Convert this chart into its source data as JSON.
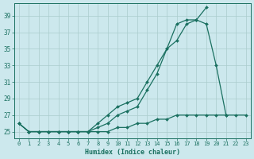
{
  "xlabel": "Humidex (Indice chaleur)",
  "x_values": [
    0,
    1,
    2,
    3,
    4,
    5,
    6,
    7,
    8,
    9,
    10,
    11,
    12,
    13,
    14,
    15,
    16,
    17,
    18,
    19,
    20,
    21,
    22,
    23
  ],
  "line1": [
    26,
    25,
    25,
    25,
    25,
    25,
    25,
    25,
    26,
    27,
    28,
    28.5,
    29,
    31,
    33,
    35,
    36,
    38,
    38.5,
    40,
    null,
    null,
    null,
    null
  ],
  "line2": [
    26,
    25,
    25,
    25,
    25,
    25,
    25,
    25,
    25.5,
    26,
    27,
    27.5,
    28,
    30,
    32,
    35,
    38,
    38.5,
    38.5,
    38,
    33,
    27,
    null,
    null
  ],
  "line3": [
    26,
    25,
    25,
    25,
    25,
    25,
    25,
    25,
    25,
    25,
    25.5,
    25.5,
    26,
    26,
    26.5,
    26.5,
    27,
    27,
    27,
    27,
    27,
    27,
    27,
    27
  ],
  "line_color": "#1a7060",
  "bg_color": "#cce8ed",
  "grid_color": "#aacccc",
  "ylim_min": 24.2,
  "ylim_max": 40.5,
  "xlim_min": -0.5,
  "xlim_max": 23.5,
  "yticks": [
    25,
    27,
    29,
    31,
    33,
    35,
    37,
    39
  ],
  "xticks": [
    0,
    1,
    2,
    3,
    4,
    5,
    6,
    7,
    8,
    9,
    10,
    11,
    12,
    13,
    14,
    15,
    16,
    17,
    18,
    19,
    20,
    21,
    22,
    23
  ],
  "marker": "D",
  "marker_size": 2.0,
  "line_width": 0.9
}
